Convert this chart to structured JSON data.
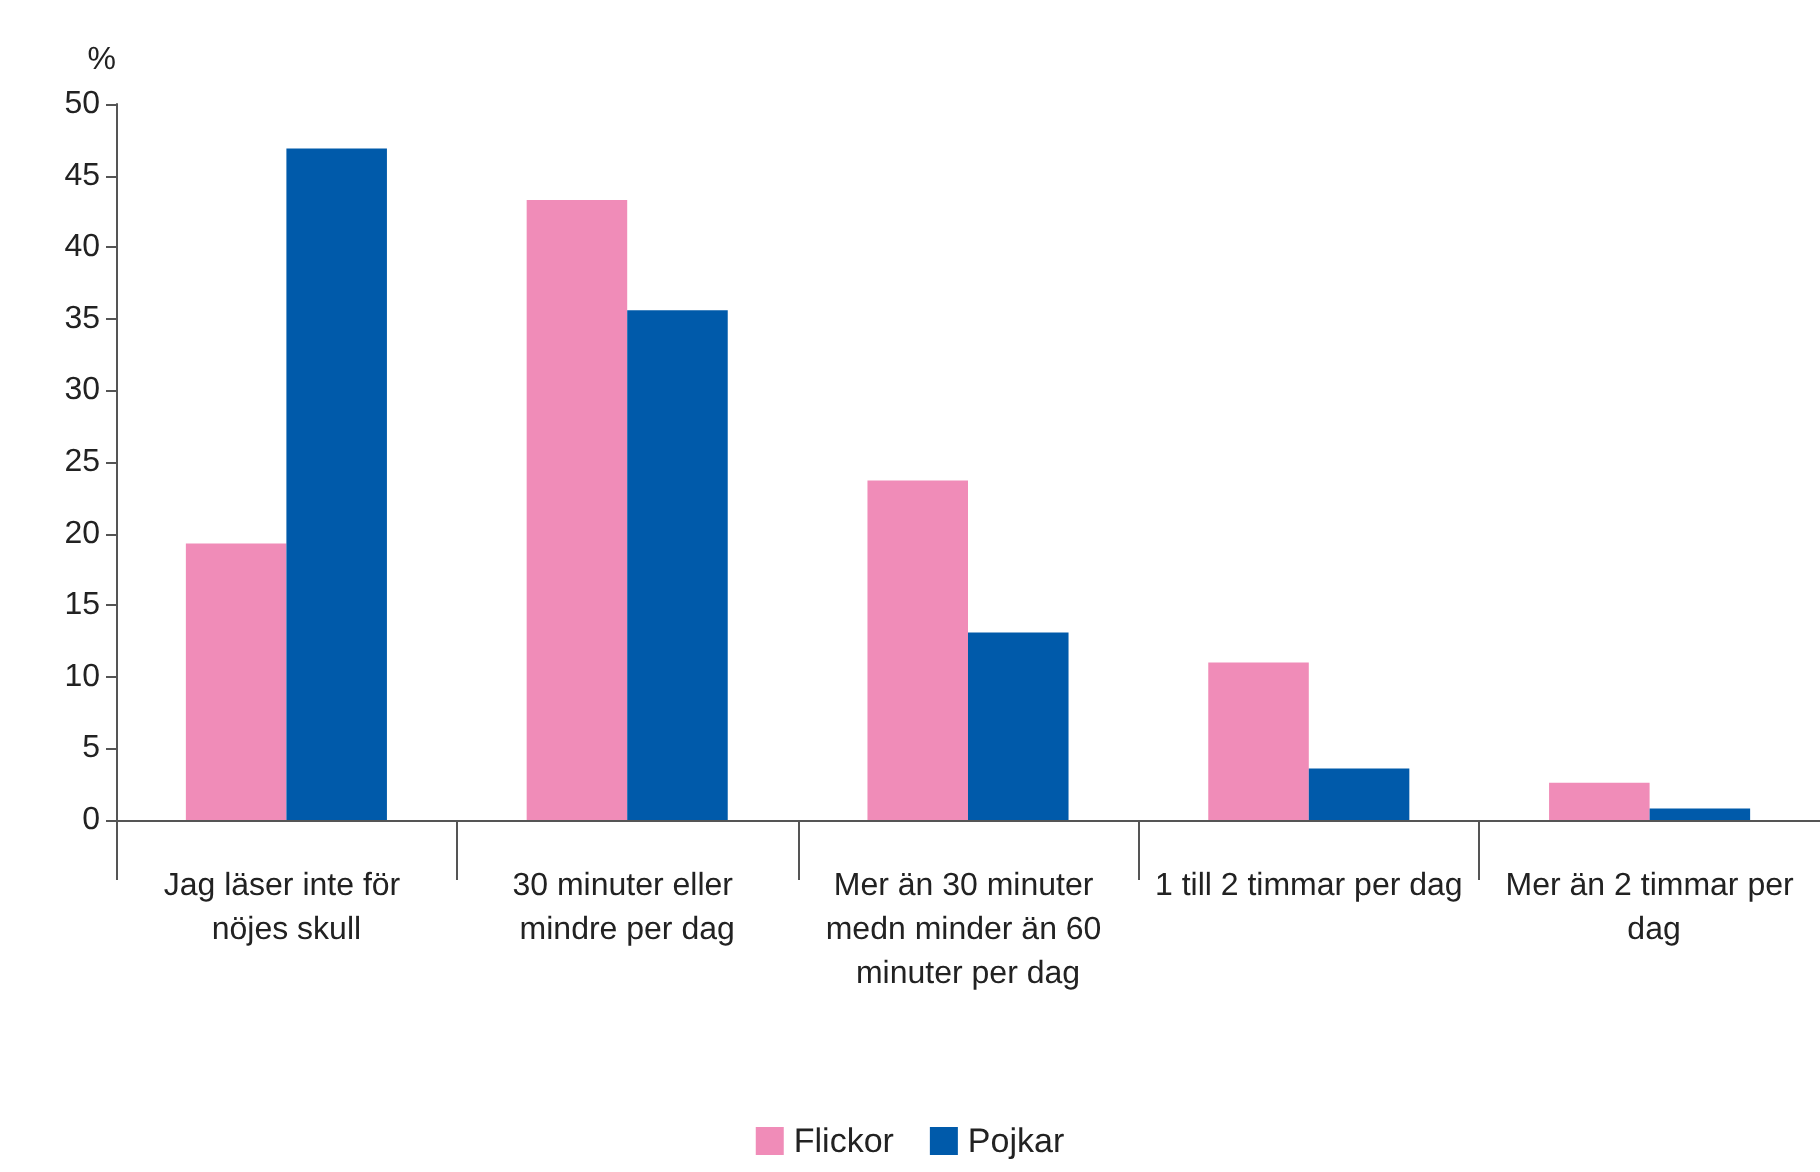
{
  "chart_data": {
    "type": "bar",
    "ylabel": "%",
    "categories": [
      "Jag läser inte för nöjes skull",
      "30 minuter eller mindre per dag",
      "Mer än 30 minuter medn minder än 60 minuter per dag",
      "1 till 2 timmar per dag",
      "Mer än 2 timmar per dag"
    ],
    "series": [
      {
        "name": "Flickor",
        "color": "#f08cb8",
        "values": [
          19.3,
          43.3,
          23.7,
          11.0,
          2.6
        ]
      },
      {
        "name": "Pojkar",
        "color": "#005aaa",
        "values": [
          46.9,
          35.6,
          13.1,
          3.6,
          0.8
        ]
      }
    ],
    "ylim": [
      0,
      50
    ],
    "yticks": [
      0,
      5,
      10,
      15,
      20,
      25,
      30,
      35,
      40,
      45,
      50
    ],
    "grid": false,
    "legend": "bottom"
  }
}
